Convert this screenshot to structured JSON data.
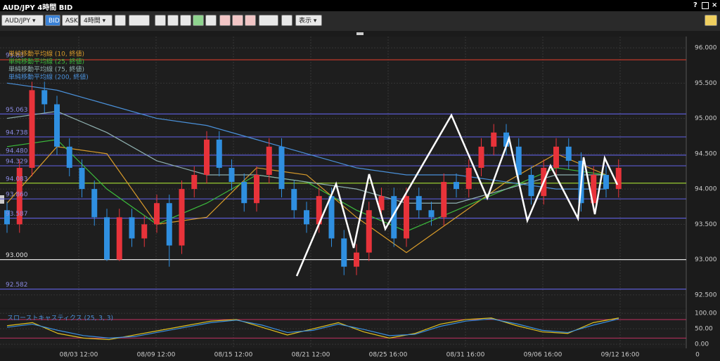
{
  "window": {
    "title": "AUD/JPY 4時間 BID"
  },
  "toolbar": {
    "symbol": "AUD/JPY",
    "bid": "BID",
    "ask": "ASK",
    "timeframe": "4時間",
    "view": "表示"
  },
  "chart_data": {
    "type": "candlestick",
    "up_color": "#e8333a",
    "down_color": "#2f8fe0",
    "candles": [
      [
        93.7,
        93.82,
        93.38,
        93.5
      ],
      [
        93.5,
        94.42,
        93.38,
        94.3
      ],
      [
        94.3,
        95.52,
        94.18,
        95.4
      ],
      [
        95.4,
        95.52,
        95.08,
        95.2
      ],
      [
        95.2,
        95.32,
        94.48,
        94.6
      ],
      [
        94.6,
        94.72,
        94.18,
        94.3
      ],
      [
        94.3,
        94.42,
        93.88,
        94.0
      ],
      [
        94.0,
        94.12,
        93.48,
        93.6
      ],
      [
        93.6,
        93.72,
        92.98,
        93.0
      ],
      [
        93.0,
        93.72,
        92.98,
        93.6
      ],
      [
        93.6,
        93.72,
        93.18,
        93.3
      ],
      [
        93.3,
        93.62,
        93.18,
        93.5
      ],
      [
        93.5,
        93.92,
        93.38,
        93.8
      ],
      [
        93.8,
        93.92,
        92.9,
        93.2
      ],
      [
        93.2,
        94.12,
        93.08,
        94.0
      ],
      [
        94.0,
        94.32,
        93.88,
        94.2
      ],
      [
        94.2,
        94.82,
        94.08,
        94.7
      ],
      [
        94.7,
        94.82,
        94.18,
        94.3
      ],
      [
        94.3,
        94.42,
        93.98,
        94.1
      ],
      [
        94.1,
        94.22,
        93.68,
        93.8
      ],
      [
        93.8,
        94.32,
        93.68,
        94.2
      ],
      [
        94.2,
        94.72,
        94.08,
        94.6
      ],
      [
        94.6,
        94.72,
        93.88,
        94.0
      ],
      [
        94.0,
        94.12,
        93.58,
        93.7
      ],
      [
        93.7,
        93.82,
        93.38,
        93.5
      ],
      [
        93.5,
        94.02,
        93.38,
        93.9
      ],
      [
        93.9,
        94.02,
        93.18,
        93.3
      ],
      [
        93.3,
        93.42,
        92.78,
        92.9
      ],
      [
        92.9,
        93.22,
        92.78,
        93.1
      ],
      [
        93.1,
        93.82,
        92.98,
        93.7
      ],
      [
        93.7,
        94.02,
        93.58,
        93.9
      ],
      [
        93.9,
        94.02,
        93.18,
        93.3
      ],
      [
        93.3,
        94.02,
        93.18,
        93.9
      ],
      [
        93.9,
        94.02,
        93.58,
        93.7
      ],
      [
        93.7,
        93.82,
        93.48,
        93.6
      ],
      [
        93.6,
        94.22,
        93.48,
        94.1
      ],
      [
        94.1,
        94.22,
        93.88,
        94.0
      ],
      [
        94.0,
        94.42,
        93.88,
        94.3
      ],
      [
        94.3,
        94.72,
        94.18,
        94.6
      ],
      [
        94.6,
        94.92,
        94.48,
        94.8
      ],
      [
        94.8,
        94.92,
        94.48,
        94.6
      ],
      [
        94.6,
        94.72,
        94.08,
        94.2
      ],
      [
        94.2,
        94.32,
        93.78,
        93.9
      ],
      [
        93.9,
        94.42,
        93.78,
        94.3
      ],
      [
        94.3,
        94.72,
        94.18,
        94.6
      ],
      [
        94.6,
        94.72,
        94.28,
        94.4
      ],
      [
        94.4,
        94.52,
        93.68,
        93.8
      ],
      [
        93.8,
        94.32,
        93.68,
        94.2
      ],
      [
        94.2,
        94.32,
        93.88,
        94.0
      ],
      [
        94.0,
        94.42,
        93.88,
        94.3
      ]
    ],
    "x": [
      0,
      4,
      8,
      12,
      16,
      20,
      24,
      28,
      32,
      36,
      40,
      44,
      48
    ],
    "series": [
      {
        "name": "単純移動平均線 (10, 終値)",
        "color": "#d89b2a",
        "values": [
          93.8,
          94.6,
          94.5,
          93.5,
          93.6,
          94.3,
          94.2,
          93.6,
          93.1,
          93.6,
          94.1,
          94.5,
          94.2
        ]
      },
      {
        "name": "単純移動平均線 (25, 終値)",
        "color": "#3cba3c",
        "values": [
          94.6,
          94.7,
          94.0,
          93.5,
          93.8,
          94.2,
          94.1,
          93.7,
          93.4,
          93.7,
          94.0,
          94.3,
          94.2
        ]
      },
      {
        "name": "単純移動平均線 (75, 終値)",
        "color": "#8fb0b0",
        "values": [
          95.0,
          95.1,
          94.8,
          94.4,
          94.2,
          94.2,
          94.1,
          94.0,
          93.8,
          93.8,
          94.0,
          94.2,
          94.2
        ]
      },
      {
        "name": "単純移動平均線 (200, 終値)",
        "color": "#4a90d9",
        "values": [
          95.5,
          95.4,
          95.2,
          95.0,
          94.9,
          94.7,
          94.5,
          94.3,
          94.2,
          94.2,
          94.1,
          94.0,
          94.0
        ]
      }
    ],
    "ylim": [
      92.32,
      96.13
    ],
    "yticks": [
      {
        "value": 96,
        "label": "96.000"
      },
      {
        "value": 95.5,
        "label": "95.500"
      },
      {
        "value": 95,
        "label": "95.000"
      },
      {
        "value": 94.5,
        "label": "94.500"
      },
      {
        "value": 94,
        "label": "94.000"
      },
      {
        "value": 93.5,
        "label": "93.500"
      },
      {
        "value": 93,
        "label": "93.000"
      },
      {
        "value": 92.5,
        "label": "92.500"
      }
    ],
    "levels": [
      {
        "value": 95.83,
        "color": "#c0392b"
      },
      {
        "value": 95.063,
        "color": "#5b5bd0"
      },
      {
        "value": 94.738,
        "color": "#5b5bd0"
      },
      {
        "value": 94.48,
        "label": "94.480",
        "color": "#5b5bd0"
      },
      {
        "value": 94.329,
        "color": "#5b5bd0"
      },
      {
        "value": 94.083,
        "color": "#9acd32"
      },
      {
        "value": 93.86,
        "label": "93.860",
        "color": "#5b5bd0"
      },
      {
        "value": 93.587,
        "color": "#5b5bd0"
      },
      {
        "value": 93,
        "label": "93.000",
        "color": "#e0e0e0"
      },
      {
        "value": 92.582,
        "color": "#5b5bd0"
      }
    ],
    "xtick_labels": [
      "08/03 12:00",
      "08/09 12:00",
      "08/15 12:00",
      "08/21 12:00",
      "08/25 16:00",
      "08/31 16:00",
      "09/06 16:00",
      "09/12 16:00",
      "0"
    ],
    "stochastic": {
      "name": "スローストキャスティクス (25, 3, 3)",
      "ylim": [
        -11,
        114
      ],
      "yticks": [
        {
          "value": 100,
          "label": "100.00"
        },
        {
          "value": 50,
          "label": "50.00"
        },
        {
          "value": 0,
          "label": "0.00"
        }
      ],
      "levels": [
        80,
        20
      ],
      "series": [
        {
          "color": "#e0c020",
          "values": [
            60,
            70,
            35,
            20,
            15,
            30,
            45,
            60,
            75,
            80,
            55,
            30,
            50,
            70,
            40,
            20,
            35,
            65,
            80,
            85,
            60,
            40,
            35,
            70,
            85
          ]
        },
        {
          "color": "#3a8fe0",
          "values": [
            55,
            65,
            45,
            28,
            20,
            25,
            40,
            55,
            70,
            78,
            62,
            38,
            45,
            65,
            48,
            28,
            32,
            58,
            75,
            82,
            66,
            45,
            38,
            62,
            82
          ]
        }
      ]
    }
  }
}
